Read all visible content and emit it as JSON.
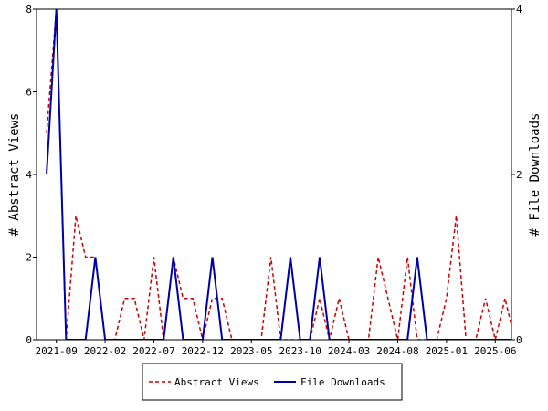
{
  "chart_data": {
    "type": "line",
    "x_dates": [
      "2021-08",
      "2021-09",
      "2021-10",
      "2021-11",
      "2021-12",
      "2022-01",
      "2022-02",
      "2022-03",
      "2022-04",
      "2022-05",
      "2022-06",
      "2022-07",
      "2022-08",
      "2022-09",
      "2022-10",
      "2022-11",
      "2022-12",
      "2023-01",
      "2023-02",
      "2023-03",
      "2023-04",
      "2023-05",
      "2023-06",
      "2023-07",
      "2023-08",
      "2023-09",
      "2023-10",
      "2023-11",
      "2023-12",
      "2024-01",
      "2024-02",
      "2024-03",
      "2024-04",
      "2024-05",
      "2024-06",
      "2024-07",
      "2024-08",
      "2024-09",
      "2024-10",
      "2024-11",
      "2024-12",
      "2025-01",
      "2025-02",
      "2025-03",
      "2025-04",
      "2025-05",
      "2025-06",
      "2025-07",
      "2025-08"
    ],
    "series": [
      {
        "name": "Abstract Views",
        "axis": "left",
        "color": "#cc0000",
        "style": "dashed",
        "values": [
          5,
          8,
          0,
          3,
          2,
          2,
          0,
          0,
          1,
          1,
          0,
          2,
          0,
          2,
          1,
          1,
          0,
          1,
          1,
          0,
          0,
          0,
          0,
          2,
          0,
          0,
          0,
          0,
          1,
          0,
          1,
          0,
          0,
          0,
          2,
          1,
          0,
          2,
          0,
          0,
          0,
          1,
          3,
          0,
          0,
          1,
          0,
          1,
          0
        ]
      },
      {
        "name": "File Downloads",
        "axis": "right",
        "color": "#0000aa",
        "style": "solid",
        "values": [
          2,
          4,
          0,
          0,
          0,
          1,
          0,
          0,
          0,
          0,
          0,
          0,
          0,
          1,
          0,
          0,
          0,
          1,
          0,
          0,
          0,
          0,
          0,
          0,
          0,
          1,
          0,
          0,
          1,
          0,
          0,
          0,
          0,
          0,
          0,
          0,
          0,
          0,
          1,
          0,
          0,
          0,
          0,
          0,
          0,
          0,
          0,
          0,
          0
        ]
      }
    ],
    "x_ticks": [
      "2021-09",
      "2022-02",
      "2022-07",
      "2022-12",
      "2023-05",
      "2023-10",
      "2024-03",
      "2024-08",
      "2025-01",
      "2025-06"
    ],
    "ylabel_left": "# Abstract Views",
    "ylabel_right": "# File Downloads",
    "ylim_left": [
      0,
      8
    ],
    "yticks_left": [
      "0",
      "2",
      "4",
      "6",
      "8"
    ],
    "ylim_right": [
      0,
      4
    ],
    "yticks_right": [
      "0",
      "2",
      "4"
    ],
    "grid": false,
    "legend_position": "bottom-center"
  }
}
